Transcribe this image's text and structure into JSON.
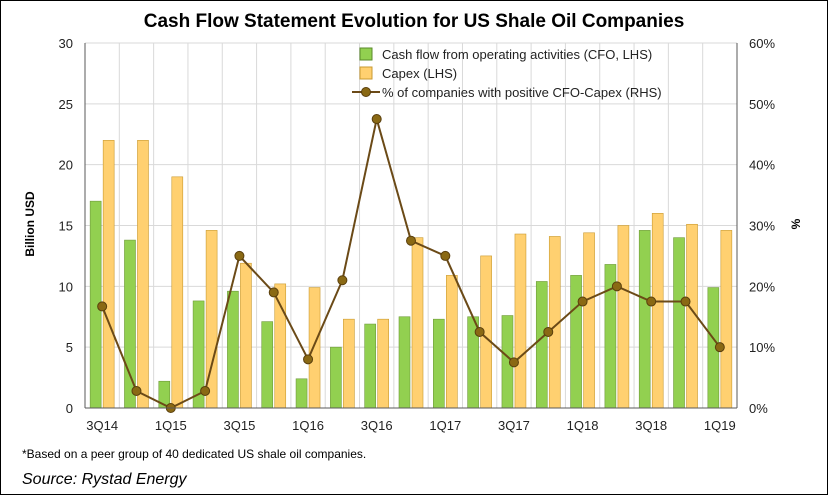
{
  "chart_data": {
    "type": "bar",
    "title": "Cash Flow Statement Evolution for US Shale Oil Companies",
    "ylabel_left": "Billion USD",
    "ylabel_right": "%",
    "ylim_left": [
      0,
      30
    ],
    "ylim_right": [
      0,
      60
    ],
    "yticks_left": [
      "0",
      "5",
      "10",
      "15",
      "20",
      "25",
      "30"
    ],
    "yticks_right": [
      "0%",
      "10%",
      "20%",
      "30%",
      "40%",
      "50%",
      "60%"
    ],
    "xtick_labels": [
      "3Q14",
      "1Q15",
      "3Q15",
      "1Q16",
      "3Q16",
      "1Q17",
      "3Q17",
      "1Q18",
      "3Q18",
      "1Q19"
    ],
    "categories": [
      "3Q14",
      "4Q14",
      "1Q15",
      "2Q15",
      "3Q15",
      "4Q15",
      "1Q16",
      "2Q16",
      "3Q16",
      "4Q16",
      "1Q17",
      "2Q17",
      "3Q17",
      "4Q17",
      "1Q18",
      "2Q18",
      "3Q18",
      "4Q18",
      "1Q19"
    ],
    "series": [
      {
        "name": "Cash flow from operating activities (CFO, LHS)",
        "type": "bar",
        "axis": "left",
        "color": "#92d050",
        "values": [
          17.0,
          13.8,
          2.2,
          8.8,
          9.6,
          7.1,
          2.4,
          5.0,
          6.9,
          7.5,
          7.3,
          7.5,
          7.6,
          10.4,
          10.9,
          11.8,
          14.6,
          14.0,
          9.9
        ]
      },
      {
        "name": "Capex (LHS)",
        "type": "bar",
        "axis": "left",
        "color": "#ffd070",
        "values": [
          22.0,
          22.0,
          19.0,
          14.6,
          11.9,
          10.2,
          9.9,
          7.3,
          7.3,
          14.0,
          10.9,
          12.5,
          14.3,
          14.1,
          14.4,
          15.0,
          16.0,
          15.1,
          14.6
        ]
      },
      {
        "name": "% of companies with positive CFO-Capex (RHS)",
        "type": "line",
        "axis": "right",
        "color": "#6b4a17",
        "marker_color": "#8a6914",
        "values": [
          16.7,
          2.8,
          0.0,
          2.8,
          25.0,
          19.0,
          8.0,
          21.0,
          47.5,
          27.5,
          25.0,
          12.5,
          7.5,
          12.5,
          17.5,
          20.0,
          17.5,
          17.5,
          10.0
        ]
      }
    ],
    "footnote": "*Based on a peer group of 40 dedicated US shale oil companies.",
    "source": "Source: Rystad Energy"
  }
}
